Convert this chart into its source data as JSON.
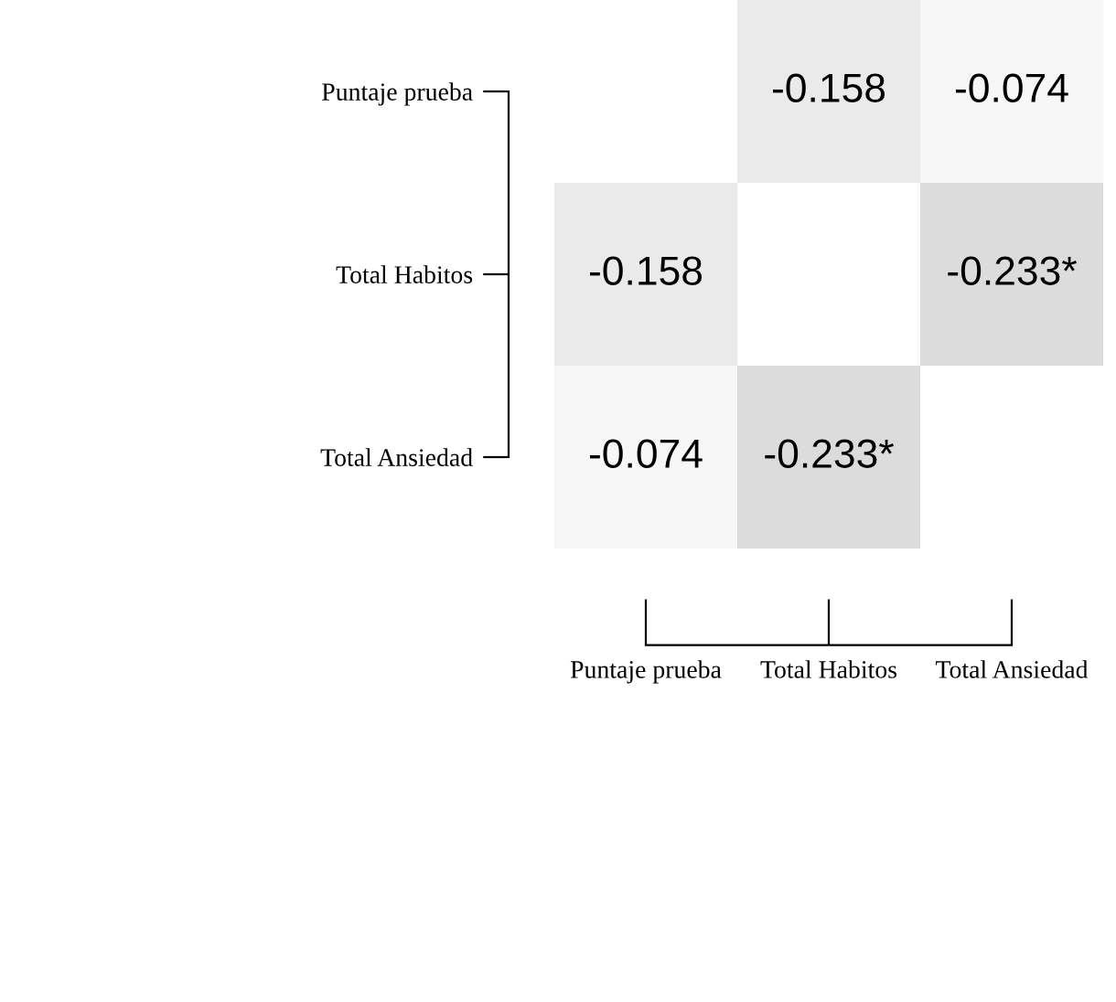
{
  "chart_data": {
    "type": "heatmap",
    "categories": [
      "Puntaje prueba",
      "Total Habitos",
      "Total Ansiedad"
    ],
    "y_categories": [
      "Puntaje prueba",
      "Total Habitos",
      "Total Ansiedad"
    ],
    "cells": [
      [
        null,
        -0.158,
        -0.074
      ],
      [
        -0.158,
        null,
        -0.233
      ],
      [
        -0.074,
        -0.233,
        null
      ]
    ],
    "cell_labels": [
      [
        null,
        "-0.158",
        "-0.074"
      ],
      [
        "-0.158",
        null,
        "-0.233*"
      ],
      [
        "-0.074",
        "-0.233*",
        null
      ]
    ]
  }
}
